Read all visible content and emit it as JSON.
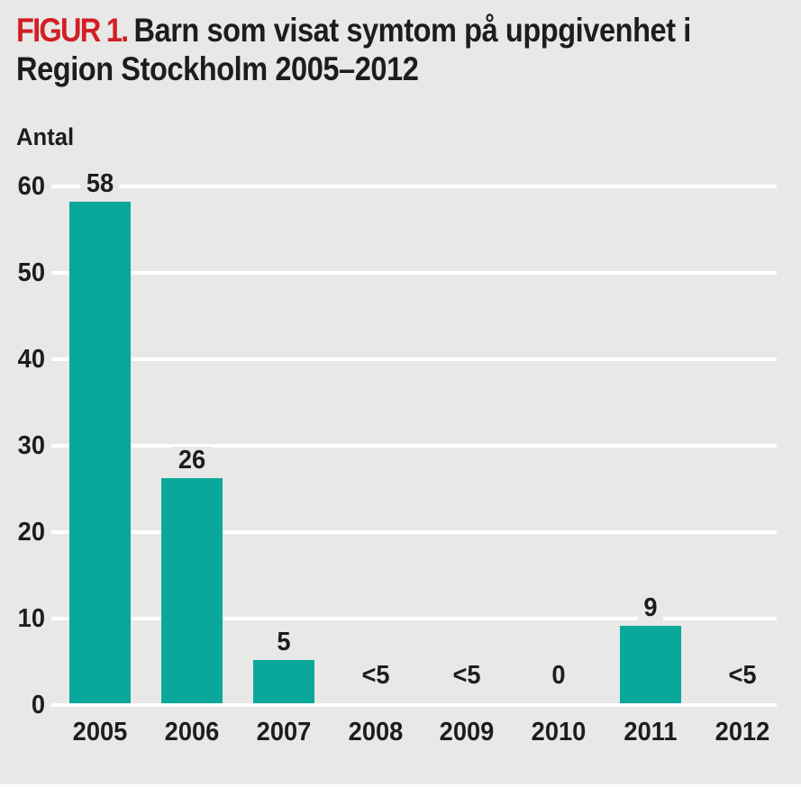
{
  "figure": {
    "label": "FIGUR 1.",
    "title_line1": "Barn som visat symtom på uppgivenhet i",
    "title_line2": "Region Stockholm 2005–2012"
  },
  "chart_data": {
    "type": "bar",
    "title": "FIGUR 1. Barn som visat symtom på uppgivenhet i Region Stockholm 2005–2012",
    "xlabel": "",
    "ylabel": "Antal",
    "categories": [
      "2005",
      "2006",
      "2007",
      "2008",
      "2009",
      "2010",
      "2011",
      "2012"
    ],
    "values": [
      58,
      26,
      5,
      null,
      null,
      0,
      9,
      null
    ],
    "value_labels": [
      "58",
      "26",
      "5",
      "<5",
      "<5",
      "0",
      "9",
      "<5"
    ],
    "ylim": [
      0,
      60
    ],
    "yticks": [
      0,
      10,
      20,
      30,
      40,
      50,
      60
    ],
    "grid": "horizontal",
    "legend": "none",
    "bar_color": "#09a89b"
  },
  "colors": {
    "background": "#e8e8e7",
    "gridline": "#ffffff",
    "bar": "#09a89b",
    "accent_red": "#d11f26",
    "text": "#1d1d1b"
  }
}
